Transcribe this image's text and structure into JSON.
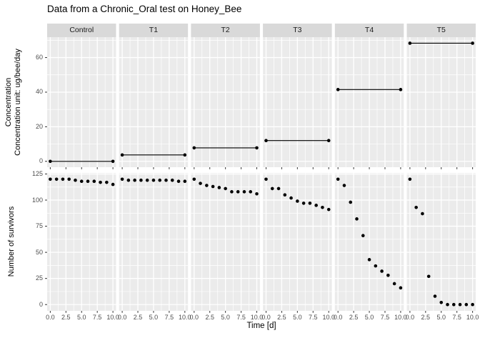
{
  "title": "Data from a Chronic_Oral test on Honey_Bee",
  "axes": {
    "x_title": "Time [d]",
    "x_tick_labels": [
      "0.0",
      "2.5",
      "5.0",
      "7.5",
      "10.0"
    ],
    "y_top_title_line1": "Concentration",
    "y_top_title_line2": "Concentration unit: ug/bee/day",
    "y_top_tick_labels": [
      "0",
      "20",
      "40",
      "60"
    ],
    "y_bottom_title": "Number of survivors",
    "y_bottom_tick_labels": [
      "0",
      "25",
      "50",
      "75",
      "100",
      "125"
    ]
  },
  "colors": {
    "panel_background": "#EBEBEB",
    "strip_background": "#D9D9D9",
    "gridline": "#FFFFFF",
    "point": "#000000",
    "tick_mark": "#333333",
    "tick_label": "#4D4D4D",
    "text": "#000000"
  },
  "chart_data": {
    "type": "scatter",
    "title": "Data from a Chronic_Oral test on Honey_Bee",
    "xlabel": "Time [d]",
    "facet_labels": [
      "Control",
      "T1",
      "T2",
      "T3",
      "T4",
      "T5"
    ],
    "x": [
      0,
      1,
      2,
      3,
      4,
      5,
      6,
      7,
      8,
      9,
      10
    ],
    "x_ticks": [
      0,
      2.5,
      5,
      7.5,
      10
    ],
    "x_ticks_minor": [
      1.25,
      3.75,
      6.25,
      8.75
    ],
    "xlim": [
      0,
      10
    ],
    "grid": true,
    "rows": [
      {
        "name": "concentration",
        "ylabel": "Concentration / Concentration unit: ug/bee/day",
        "ylim": [
          0,
          68.3
        ],
        "yticks": [
          0,
          20,
          40,
          60
        ],
        "yticks_minor": [
          10,
          30,
          50,
          70
        ]
      },
      {
        "name": "survivors",
        "ylabel": "Number of survivors",
        "ylim": [
          0,
          120
        ],
        "yticks": [
          0,
          25,
          50,
          75,
          100,
          125
        ],
        "yticks_minor": [
          12.5,
          37.5,
          62.5,
          87.5,
          112.5
        ]
      }
    ],
    "series": [
      {
        "facet": "Control",
        "concentration": 0,
        "survivors": [
          120,
          120,
          120,
          120,
          119,
          118,
          118,
          118,
          117,
          117,
          115
        ]
      },
      {
        "facet": "T1",
        "concentration": 3.7,
        "survivors": [
          120,
          119,
          119,
          119,
          119,
          119,
          119,
          119,
          119,
          118,
          118
        ]
      },
      {
        "facet": "T2",
        "concentration": 7.8,
        "survivors": [
          120,
          116,
          114,
          113,
          112,
          111,
          108,
          108,
          108,
          108,
          106
        ]
      },
      {
        "facet": "T3",
        "concentration": 12,
        "survivors": [
          120,
          111,
          111,
          105,
          102,
          99,
          97,
          97,
          95,
          93,
          91
        ]
      },
      {
        "facet": "T4",
        "concentration": 41.5,
        "survivors": [
          120,
          114,
          98,
          82,
          66,
          43,
          37,
          32,
          28,
          20,
          16
        ]
      },
      {
        "facet": "T5",
        "concentration": 68.3,
        "survivors": [
          120,
          93,
          87,
          27,
          8,
          2,
          0,
          0,
          0,
          0,
          0
        ]
      }
    ]
  }
}
